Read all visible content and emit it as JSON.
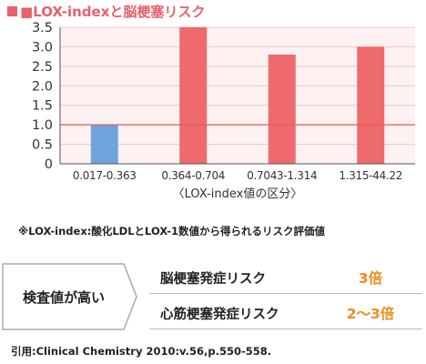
{
  "chart_data": {
    "type": "bar",
    "title": "■LOX-indexと脳梗塞リスク",
    "categories": [
      "0.017-0.363",
      "0.364-0.704",
      "0.7043-1.314",
      "1.315-44.22"
    ],
    "values": [
      1.0,
      3.55,
      2.8,
      3.0
    ],
    "bar_colors": [
      "#6fa4dd",
      "#ee6a6d",
      "#ee6a6d",
      "#ee6a6d"
    ],
    "xlabel": "〈LOX-index値の区分〉",
    "ylabel": "",
    "ylim": [
      0,
      3.5
    ],
    "yticks": [
      "0",
      "0.5",
      "1.0",
      "1.5",
      "2.0",
      "2.5",
      "3.0",
      "3.5"
    ],
    "reference_line": 1.0,
    "grid": true,
    "background": "#fdf1f1",
    "grid_color": "#f3c5c5",
    "reference_color": "#e55a5a"
  },
  "note": "※LOX-index:酸化LDLとLOX-1数値から得られるリスク評価値",
  "risk": {
    "label": "検査値が高い",
    "rows": [
      {
        "name": "脳梗塞発症リスク",
        "value": "3倍"
      },
      {
        "name": "心筋梗塞発症リスク",
        "value": "2〜3倍"
      }
    ]
  },
  "citation": "引用:Clinical Chemistry 2010:v.56,p.550-558."
}
